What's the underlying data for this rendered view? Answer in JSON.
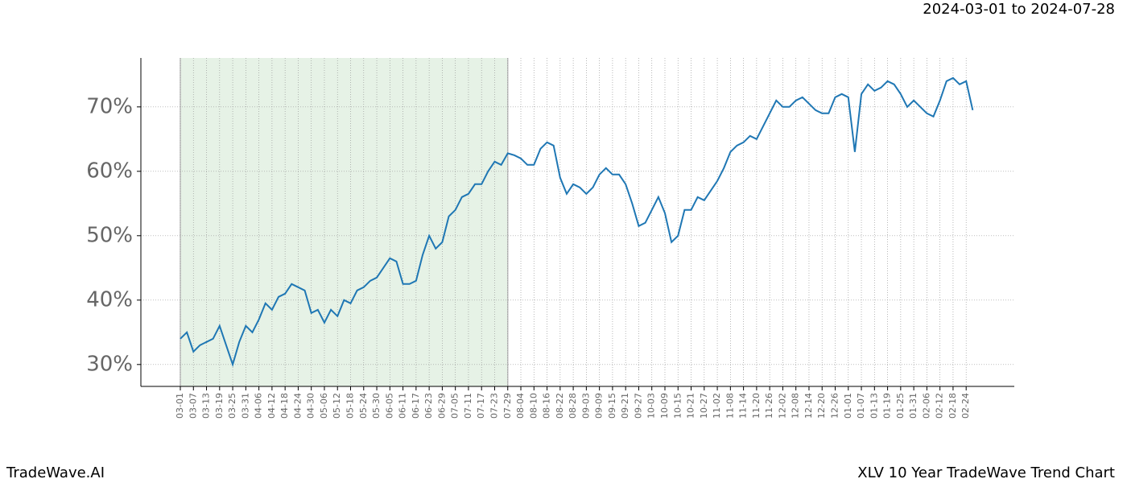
{
  "chart_data": {
    "type": "line",
    "title": "XLV 10 Year TradeWave Trend Chart",
    "subtitle": "2024-03-01 to 2024-07-28",
    "brand": "TradeWave.AI",
    "categories": [
      "03-01",
      null,
      "03-07",
      null,
      "03-13",
      null,
      "03-19",
      null,
      "03-25",
      null,
      "03-31",
      null,
      "04-06",
      null,
      "04-12",
      null,
      "04-18",
      null,
      "04-24",
      null,
      "04-30",
      null,
      "05-06",
      null,
      "05-12",
      null,
      "05-18",
      null,
      "05-24",
      null,
      "05-30",
      null,
      "06-05",
      null,
      "06-11",
      null,
      "06-17",
      null,
      "06-23",
      null,
      "06-29",
      null,
      "07-05",
      null,
      "07-11",
      null,
      "07-17",
      null,
      "07-23",
      null,
      "07-29",
      null,
      "08-04",
      null,
      "08-10",
      null,
      "08-16",
      null,
      "08-22",
      null,
      "08-28",
      null,
      "09-03",
      null,
      "09-09",
      null,
      "09-15",
      null,
      "09-21",
      null,
      "09-27",
      null,
      "10-03",
      null,
      "10-09",
      null,
      "10-15",
      null,
      "10-21",
      null,
      "10-27",
      null,
      "11-02",
      null,
      "11-08",
      null,
      "11-14",
      null,
      "11-20",
      null,
      "11-26",
      null,
      "12-02",
      null,
      "12-08",
      null,
      "12-14",
      null,
      "12-20",
      null,
      "12-26",
      null,
      "01-01",
      null,
      "01-07",
      null,
      "01-13",
      null,
      "01-19",
      null,
      "01-25",
      null,
      "01-31",
      null,
      "02-06",
      null,
      "02-12",
      null,
      "02-18",
      null,
      "02-24",
      null
    ],
    "series": [
      {
        "name": "XLV",
        "color": "#1f77b4",
        "values": [
          34,
          35,
          32,
          33,
          33.5,
          34,
          36,
          33,
          30,
          33.5,
          36,
          35,
          37,
          39.5,
          38.5,
          40.5,
          41,
          42.5,
          42,
          41.5,
          38,
          38.5,
          36.5,
          38.5,
          37.5,
          40,
          39.5,
          41.5,
          42,
          43,
          43.5,
          45,
          46.5,
          46,
          42.5,
          42.5,
          43,
          47,
          50,
          48,
          49,
          53,
          54,
          56,
          56.5,
          58,
          58,
          60,
          61.5,
          61,
          62.8,
          62.5,
          62,
          61,
          61,
          63.5,
          64.5,
          64,
          59,
          56.5,
          58,
          57.5,
          56.5,
          57.5,
          59.5,
          60.5,
          59.5,
          59.5,
          58,
          55,
          51.5,
          52,
          54,
          56,
          53.5,
          49,
          50,
          54,
          54,
          56,
          55.5,
          57,
          58.5,
          60.5,
          63,
          64,
          64.5,
          65.5,
          65,
          67,
          69,
          71,
          70,
          70,
          71,
          71.5,
          70.5,
          69.5,
          69,
          69,
          71.5,
          72,
          71.5,
          63,
          72,
          73.5,
          72.5,
          73,
          74,
          73.5,
          72,
          70,
          71,
          70,
          69,
          68.5,
          71,
          74,
          74.5,
          73.5,
          74,
          69.5
        ]
      }
    ],
    "highlight_x": [
      0,
      50
    ],
    "ylim": [
      26.6,
      77.6
    ],
    "yticks": [
      {
        "value": 30,
        "label": "30%"
      },
      {
        "value": 40,
        "label": "40%"
      },
      {
        "value": 50,
        "label": "50%"
      },
      {
        "value": 60,
        "label": "60%"
      },
      {
        "value": 70,
        "label": "70%"
      }
    ],
    "grid": true
  }
}
